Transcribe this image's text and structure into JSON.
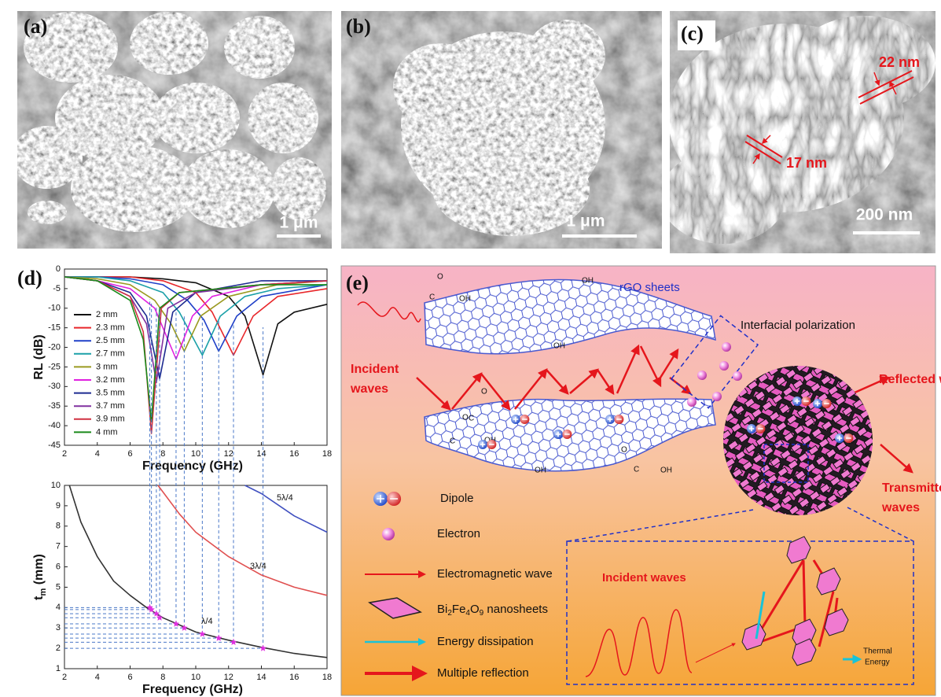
{
  "panels": {
    "a": {
      "label": "(a)",
      "scale_bar": "1 μm"
    },
    "b": {
      "label": "(b)",
      "scale_bar": "1 μm"
    },
    "c": {
      "label": "(c)",
      "scale_bar": "200 nm",
      "thickness_labels": [
        "22 nm",
        "17 nm"
      ]
    },
    "d": {
      "label": "(d)"
    },
    "e": {
      "label": "(e)",
      "rgo_label": "rGO sheets",
      "interfacial": "Interfacial polarization",
      "incident_lines": [
        "Incident",
        "waves"
      ],
      "reflected": "Reflected waves",
      "transmitted_lines": [
        "Transmitted",
        "waves"
      ],
      "legend": {
        "dipole": "Dipole",
        "electron": "Electron",
        "em_wave": "Electromagnetic wave",
        "nanosheets": [
          "Bi",
          "2",
          "Fe",
          "4",
          "O",
          "9",
          " nanosheets"
        ],
        "dissipation": "Energy dissipation",
        "reflection": "Multiple reflection"
      },
      "inset_incident": "Incident waves",
      "thermal_lines": [
        "Thermal",
        "Energy"
      ],
      "chem_labels": [
        "O",
        "C",
        "OH",
        "OH",
        "O",
        "C",
        "OH",
        "O",
        "C",
        "OH",
        "OH",
        "O",
        "C",
        "OH"
      ]
    }
  },
  "chart_data": [
    {
      "type": "line",
      "xlabel": "Frequency (GHz)",
      "ylabel": "RL (dB)",
      "xlim": [
        2,
        18
      ],
      "ylim": [
        -45,
        0
      ],
      "xticks": [
        2,
        4,
        6,
        8,
        10,
        12,
        14,
        16,
        18
      ],
      "yticks": [
        -45,
        -40,
        -35,
        -30,
        -25,
        -20,
        -15,
        -10,
        -5,
        0
      ],
      "legend": "upper left",
      "series": [
        {
          "name": "2 mm",
          "color": "#111111",
          "x": [
            2,
            4,
            6,
            8,
            10,
            12,
            13,
            14.1,
            15,
            16,
            18
          ],
          "values": [
            -2,
            -2,
            -2,
            -2.5,
            -3.5,
            -7,
            -12,
            -27,
            -14,
            -11,
            -9
          ]
        },
        {
          "name": "2.3 mm",
          "color": "#e8262a",
          "x": [
            2,
            4,
            6,
            8,
            10,
            11,
            12.3,
            13.5,
            15,
            18
          ],
          "values": [
            -2,
            -2,
            -2,
            -3,
            -6,
            -11,
            -22,
            -12,
            -7,
            -5
          ]
        },
        {
          "name": "2.5 mm",
          "color": "#2040c8",
          "x": [
            2,
            4,
            6,
            8,
            9.5,
            10.5,
            11.4,
            12.5,
            14,
            18
          ],
          "values": [
            -2,
            -2,
            -2.5,
            -4,
            -8,
            -13,
            -21,
            -12,
            -7,
            -4
          ]
        },
        {
          "name": "2.7 mm",
          "color": "#1ba0a8",
          "x": [
            2,
            4,
            6,
            8,
            9,
            10.4,
            11.5,
            13,
            15,
            18
          ],
          "values": [
            -2,
            -2,
            -3,
            -6,
            -11,
            -22,
            -12,
            -7,
            -5,
            -4
          ]
        },
        {
          "name": "3 mm",
          "color": "#9a9a20",
          "x": [
            2,
            4,
            6,
            7.5,
            8.5,
            9.3,
            10.3,
            12,
            15,
            18
          ],
          "values": [
            -2,
            -2.5,
            -4,
            -8,
            -14,
            -21,
            -12,
            -7,
            -4,
            -3
          ]
        },
        {
          "name": "3.2 mm",
          "color": "#e020e0",
          "x": [
            2,
            4,
            6,
            7.5,
            8.8,
            9.8,
            11,
            14,
            18
          ],
          "values": [
            -2,
            -3,
            -5,
            -10,
            -23,
            -12,
            -7,
            -4,
            -3
          ]
        },
        {
          "name": "3.5 mm",
          "color": "#1c2a90",
          "x": [
            2,
            4,
            6,
            7,
            7.8,
            8.6,
            10,
            14,
            18
          ],
          "values": [
            -2,
            -3,
            -6,
            -12,
            -28,
            -11,
            -6,
            -3,
            -3
          ]
        },
        {
          "name": "3.7 mm",
          "color": "#8030a0",
          "x": [
            2,
            4,
            6,
            7,
            7.6,
            8.3,
            10,
            14,
            18
          ],
          "values": [
            -2,
            -3,
            -7,
            -14,
            -29,
            -10,
            -6,
            -4,
            -3
          ]
        },
        {
          "name": "3.9 mm",
          "color": "#d03040",
          "x": [
            2,
            4,
            6,
            6.8,
            7.3,
            7.9,
            9,
            14,
            18
          ],
          "values": [
            -2,
            -3,
            -7,
            -16,
            -42,
            -10,
            -6,
            -4,
            -3
          ]
        },
        {
          "name": "4 mm",
          "color": "#1a8a1a",
          "x": [
            2,
            4,
            6,
            6.8,
            7.3,
            7.8,
            9,
            14,
            18
          ],
          "values": [
            -2,
            -3,
            -8,
            -18,
            -39,
            -10,
            -6,
            -4,
            -4
          ]
        }
      ]
    },
    {
      "type": "line",
      "xlabel": "Frequency (GHz)",
      "ylabel": "t",
      "ylabel_sub": "m",
      "ylabel_unit": " (mm)",
      "xlim": [
        2,
        18
      ],
      "ylim": [
        1,
        10
      ],
      "xticks": [
        2,
        4,
        6,
        8,
        10,
        12,
        14,
        16,
        18
      ],
      "yticks": [
        1,
        2,
        3,
        4,
        5,
        6,
        7,
        8,
        9,
        10
      ],
      "series": [
        {
          "name": "λ/4",
          "color": "#333333",
          "x": [
            2.3,
            3,
            4,
            5,
            6,
            7,
            8,
            10,
            12,
            14,
            16,
            18
          ],
          "values": [
            10,
            8.2,
            6.5,
            5.3,
            4.6,
            4,
            3.5,
            2.8,
            2.4,
            2.05,
            1.75,
            1.55
          ]
        },
        {
          "name": "3λ/4",
          "color": "#e05050",
          "x": [
            7.7,
            9,
            10,
            12,
            14,
            16,
            18
          ],
          "values": [
            10,
            8.6,
            7.7,
            6.5,
            5.6,
            5,
            4.6
          ]
        },
        {
          "name": "5λ/4",
          "color": "#4050c0",
          "x": [
            13,
            14,
            16,
            18
          ],
          "values": [
            10,
            9.6,
            8.5,
            7.7
          ]
        }
      ],
      "markers": {
        "color": "#e030e0",
        "x": [
          7.2,
          7.3,
          7.6,
          7.8,
          8.8,
          9.3,
          10.4,
          11.4,
          12.3,
          14.1
        ],
        "values": [
          4,
          3.9,
          3.7,
          3.5,
          3.2,
          3,
          2.7,
          2.5,
          2.3,
          2
        ]
      }
    }
  ]
}
